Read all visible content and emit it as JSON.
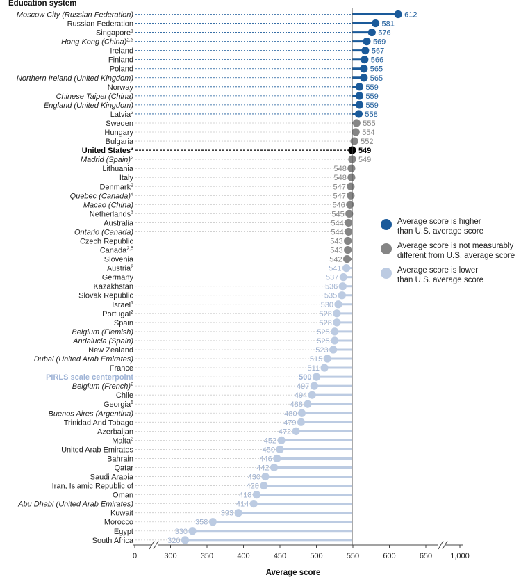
{
  "chart_data": {
    "type": "lollipop",
    "title": "Education system",
    "xlabel": "Average score",
    "baseline": 549,
    "x_ticks": [
      "0",
      "300",
      "350",
      "400",
      "450",
      "500",
      "550",
      "600",
      "650",
      "1,000"
    ],
    "x_tick_values": [
      250,
      300,
      350,
      400,
      450,
      500,
      550,
      600,
      650,
      750
    ],
    "axis_break": true,
    "colors": {
      "higher": "#1a5a9a",
      "not_different": "#858585",
      "lower": "#bccbe2",
      "us": "#000000",
      "centerpoint_label": "#9eb3d6"
    },
    "legend": [
      {
        "key": "higher",
        "label_line1": "Average score is higher",
        "label_line2": "than U.S. average score"
      },
      {
        "key": "not_different",
        "label_line1": "Average score is not measurably",
        "label_line2": "different from U.S. average score"
      },
      {
        "key": "lower",
        "label_line1": "Average score is lower",
        "label_line2": "than U.S. average score"
      }
    ],
    "rows": [
      {
        "name": "Moscow City (Russian Federation)",
        "sup": "",
        "value": 612,
        "label": "612",
        "cat": "higher",
        "italic": true
      },
      {
        "name": "Russian Federation",
        "sup": "",
        "value": 581,
        "label": "581",
        "cat": "higher"
      },
      {
        "name": "Singapore",
        "sup": "1",
        "value": 576,
        "label": "576",
        "cat": "higher"
      },
      {
        "name": "Hong Kong (China)",
        "sup": "2,3",
        "value": 569,
        "label": "569",
        "cat": "higher",
        "italic": true
      },
      {
        "name": "Ireland",
        "sup": "",
        "value": 567,
        "label": "567",
        "cat": "higher"
      },
      {
        "name": "Finland",
        "sup": "",
        "value": 566,
        "label": "566",
        "cat": "higher"
      },
      {
        "name": "Poland",
        "sup": "",
        "value": 565,
        "label": "565",
        "cat": "higher"
      },
      {
        "name": "Northern Ireland (United Kingdom)",
        "sup": "",
        "value": 565,
        "label": "565",
        "cat": "higher",
        "italic": true
      },
      {
        "name": "Norway",
        "sup": "",
        "value": 559,
        "label": "559",
        "cat": "higher"
      },
      {
        "name": "Chinese Taipei (China)",
        "sup": "",
        "value": 559,
        "label": "559",
        "cat": "higher",
        "italic": true
      },
      {
        "name": "England (United Kingdom)",
        "sup": "",
        "value": 559,
        "label": "559",
        "cat": "higher",
        "italic": true
      },
      {
        "name": "Latvia",
        "sup": "2",
        "value": 558,
        "label": "558",
        "cat": "higher"
      },
      {
        "name": "Sweden",
        "sup": "",
        "value": 555,
        "label": "555",
        "cat": "not_different"
      },
      {
        "name": "Hungary",
        "sup": "",
        "value": 554,
        "label": "554",
        "cat": "not_different"
      },
      {
        "name": "Bulgaria",
        "sup": "",
        "value": 552,
        "label": "552",
        "cat": "not_different"
      },
      {
        "name": "United States",
        "sup": "3",
        "value": 549,
        "label": "549",
        "cat": "us",
        "bold": true
      },
      {
        "name": "Madrid (Spain)",
        "sup": "2",
        "value": 549,
        "label": "549",
        "cat": "not_different",
        "italic": true
      },
      {
        "name": "Lithuania",
        "sup": "",
        "value": 548,
        "label": "548",
        "cat": "not_different"
      },
      {
        "name": "Italy",
        "sup": "",
        "value": 548,
        "label": "548",
        "cat": "not_different"
      },
      {
        "name": "Denmark",
        "sup": "2",
        "value": 547,
        "label": "547",
        "cat": "not_different"
      },
      {
        "name": "Quebec (Canada)",
        "sup": "4",
        "value": 547,
        "label": "547",
        "cat": "not_different",
        "italic": true
      },
      {
        "name": "Macao (China)",
        "sup": "",
        "value": 546,
        "label": "546",
        "cat": "not_different",
        "italic": true
      },
      {
        "name": "Netherlands",
        "sup": "3",
        "value": 545,
        "label": "545",
        "cat": "not_different"
      },
      {
        "name": "Australia",
        "sup": "",
        "value": 544,
        "label": "544",
        "cat": "not_different"
      },
      {
        "name": "Ontario (Canada)",
        "sup": "",
        "value": 544,
        "label": "544",
        "cat": "not_different",
        "italic": true
      },
      {
        "name": "Czech Republic",
        "sup": "",
        "value": 543,
        "label": "543",
        "cat": "not_different"
      },
      {
        "name": "Canada",
        "sup": "2,5",
        "value": 543,
        "label": "543",
        "cat": "not_different"
      },
      {
        "name": "Slovenia",
        "sup": "",
        "value": 542,
        "label": "542",
        "cat": "not_different"
      },
      {
        "name": "Austria",
        "sup": "2",
        "value": 541,
        "label": "541",
        "cat": "lower"
      },
      {
        "name": "Germany",
        "sup": "",
        "value": 537,
        "label": "537",
        "cat": "lower"
      },
      {
        "name": "Kazakhstan",
        "sup": "",
        "value": 536,
        "label": "536",
        "cat": "lower"
      },
      {
        "name": "Slovak Republic",
        "sup": "",
        "value": 535,
        "label": "535",
        "cat": "lower"
      },
      {
        "name": "Israel",
        "sup": "1",
        "value": 530,
        "label": "530",
        "cat": "lower"
      },
      {
        "name": "Portugal",
        "sup": "2",
        "value": 528,
        "label": "528",
        "cat": "lower"
      },
      {
        "name": "Spain",
        "sup": "",
        "value": 528,
        "label": "528",
        "cat": "lower"
      },
      {
        "name": "Belgium (Flemish)",
        "sup": "",
        "value": 525,
        "label": "525",
        "cat": "lower",
        "italic": true
      },
      {
        "name": "Andalucia (Spain)",
        "sup": "",
        "value": 525,
        "label": "525",
        "cat": "lower",
        "italic": true
      },
      {
        "name": "New Zealand",
        "sup": "",
        "value": 523,
        "label": "523",
        "cat": "lower"
      },
      {
        "name": "Dubai (United Arab Emirates)",
        "sup": "",
        "value": 515,
        "label": "515",
        "cat": "lower",
        "italic": true
      },
      {
        "name": "France",
        "sup": "",
        "value": 511,
        "label": "511",
        "cat": "lower"
      },
      {
        "name": "PIRLS scale centerpoint",
        "sup": "",
        "value": 500,
        "label": "500",
        "cat": "lower",
        "centerpoint": true
      },
      {
        "name": "Belgium (French)",
        "sup": "2",
        "value": 497,
        "label": "497",
        "cat": "lower",
        "italic": true
      },
      {
        "name": "Chile",
        "sup": "",
        "value": 494,
        "label": "494",
        "cat": "lower"
      },
      {
        "name": "Georgia",
        "sup": "5",
        "value": 488,
        "label": "488",
        "cat": "lower"
      },
      {
        "name": "Buenos Aires (Argentina)",
        "sup": "",
        "value": 480,
        "label": "480",
        "cat": "lower",
        "italic": true
      },
      {
        "name": "Trinidad And Tobago",
        "sup": "",
        "value": 479,
        "label": "479",
        "cat": "lower"
      },
      {
        "name": "Azerbaijan",
        "sup": "",
        "value": 472,
        "label": "472",
        "cat": "lower"
      },
      {
        "name": "Malta",
        "sup": "2",
        "value": 452,
        "label": "452",
        "cat": "lower"
      },
      {
        "name": "United Arab Emirates",
        "sup": "",
        "value": 450,
        "label": "450",
        "cat": "lower"
      },
      {
        "name": "Bahrain",
        "sup": "",
        "value": 446,
        "label": "446",
        "cat": "lower"
      },
      {
        "name": "Qatar",
        "sup": "",
        "value": 442,
        "label": "442",
        "cat": "lower"
      },
      {
        "name": "Saudi Arabia",
        "sup": "",
        "value": 430,
        "label": "430",
        "cat": "lower"
      },
      {
        "name": "Iran, Islamic Republic of",
        "sup": "",
        "value": 428,
        "label": "428",
        "cat": "lower"
      },
      {
        "name": "Oman",
        "sup": "",
        "value": 418,
        "label": "418",
        "cat": "lower"
      },
      {
        "name": "Abu Dhabi (United Arab Emirates)",
        "sup": "",
        "value": 414,
        "label": "414",
        "cat": "lower",
        "italic": true
      },
      {
        "name": "Kuwait",
        "sup": "",
        "value": 393,
        "label": "393",
        "cat": "lower"
      },
      {
        "name": "Morocco",
        "sup": "",
        "value": 358,
        "label": "358",
        "cat": "lower"
      },
      {
        "name": "Egypt",
        "sup": "",
        "value": 330,
        "label": "330",
        "cat": "lower"
      },
      {
        "name": "South Africa",
        "sup": "",
        "value": 320,
        "label": "320",
        "cat": "lower"
      }
    ]
  }
}
